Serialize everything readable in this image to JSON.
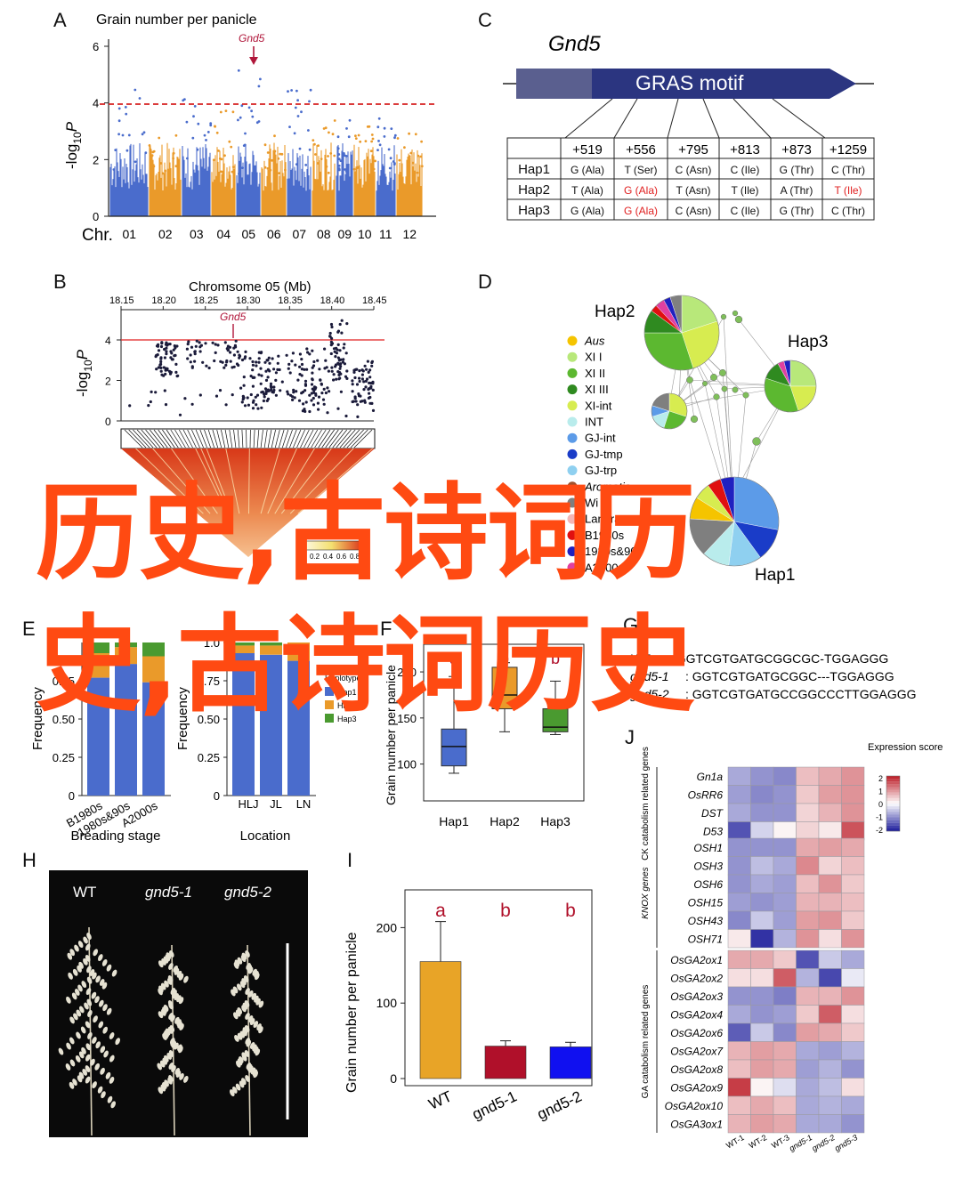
{
  "panel_labels": {
    "A": "A",
    "B": "B",
    "C": "C",
    "D": "D",
    "E": "E",
    "F": "F",
    "G": "G",
    "H": "H",
    "I": "I",
    "J": "J"
  },
  "panel_a": {
    "title": "Grain number per panicle",
    "ylabel_prefix": "-log",
    "ylabel_sub": "10",
    "ylabel_italic": "P",
    "yticks": [
      "0",
      "2",
      "4",
      "6"
    ],
    "xlabel": "Chr.",
    "chromosomes": [
      "01",
      "02",
      "03",
      "04",
      "05",
      "06",
      "07",
      "08",
      "09",
      "10",
      "11",
      "12"
    ],
    "gene": "Gnd5",
    "threshold": 4,
    "colors": {
      "blue": "#4a6ccc",
      "orange": "#ea9a2a",
      "threshold": "#d62020",
      "gene": "#b0163a"
    }
  },
  "panel_b": {
    "title": "Chromsome 05 (Mb)",
    "xticks": [
      "18.15",
      "18.20",
      "18.25",
      "18.30",
      "18.35",
      "18.40",
      "18.45"
    ],
    "gene": "Gnd5",
    "yticks": [
      "0",
      "2",
      "4"
    ],
    "r2_label": "r",
    "r2_sup": "2",
    "r2_ticks": [
      "0",
      "0.2",
      "0.4",
      "0.6",
      "0.8",
      "1"
    ]
  },
  "panel_c": {
    "gene": "Gnd5",
    "motif": "GRAS  motif",
    "header": [
      "",
      "+519",
      "+556",
      "+795",
      "+813",
      "+873",
      "+1259"
    ],
    "rows": [
      [
        "Hap1",
        "G (Ala)",
        "T (Ser)",
        "C (Asn)",
        "C (Ile)",
        "G (Thr)",
        "C (Thr)"
      ],
      [
        "Hap2",
        "T (Ala)",
        "G (Ala)",
        "T (Asn)",
        "T (Ile)",
        "A (Thr)",
        "T (Ile)"
      ],
      [
        "Hap3",
        "G (Ala)",
        "G (Ala)",
        "C (Asn)",
        "C (Ile)",
        "G (Thr)",
        "C (Thr)"
      ]
    ],
    "red_cells": [
      [
        1,
        2
      ],
      [
        1,
        6
      ],
      [
        2,
        2
      ]
    ]
  },
  "panel_d": {
    "hap_labels": [
      "Hap2",
      "Hap3",
      "Hap1"
    ],
    "legend": [
      {
        "label": "Aus",
        "color": "#f5c400",
        "italic": true
      },
      {
        "label": "XI I",
        "color": "#b8e87a",
        "italic": false
      },
      {
        "label": "XI II",
        "color": "#5cb830",
        "italic": false
      },
      {
        "label": "XI III",
        "color": "#2f8a20",
        "italic": false
      },
      {
        "label": "XI-int",
        "color": "#d7ec50",
        "italic": false
      },
      {
        "label": "INT",
        "color": "#b9ecec",
        "italic": false
      },
      {
        "label": "GJ-int",
        "color": "#5c9be8",
        "italic": false
      },
      {
        "label": "GJ-tmp",
        "color": "#1a3cc8",
        "italic": false
      },
      {
        "label": "GJ-trp",
        "color": "#8fd0f0",
        "italic": false
      },
      {
        "label": "Aromatic",
        "color": "#a0522d",
        "italic": true
      },
      {
        "label": "Wi",
        "color": "#7f7f7f",
        "italic": false
      },
      {
        "label": "Landrace",
        "color": "#f4b6b6",
        "italic": false
      },
      {
        "label": "B1980s",
        "color": "#e01010",
        "italic": false
      },
      {
        "label": "1980s&90s",
        "color": "#2020c0",
        "italic": false
      },
      {
        "label": "A2000s",
        "color": "#e040a0",
        "italic": false
      }
    ]
  },
  "panel_e": {
    "ylabel": "Frequency",
    "yticks": [
      "0",
      "0.25",
      "0.50",
      "0.75"
    ],
    "categories": [
      "B1980s",
      "1980s&90s",
      "A2000s"
    ],
    "xlabel": "Breading stage"
  },
  "panel_f1": {
    "ylabel": "Frequency",
    "yticks": [
      "0",
      "0.25",
      "0.50",
      "0.75",
      "1.0"
    ],
    "categories": [
      "HLJ",
      "JL",
      "LN"
    ],
    "xlabel": "Location",
    "legend_title": "Haplotype",
    "legend": [
      "Hap1",
      "Hap2",
      "Hap3"
    ]
  },
  "panel_f2": {
    "ylabel": "Grain number per panicle",
    "yticks": [
      "100",
      "150",
      "200"
    ],
    "categories": [
      "Hap1",
      "Hap2",
      "Hap3"
    ],
    "letters": [
      "a",
      "b",
      "b"
    ]
  },
  "panel_g": {
    "lines": [
      {
        "label": "WT",
        "seq": ": GGTCGTGATGCGGCGC-TGGAGGG"
      },
      {
        "label": "gnd5-1",
        "seq": ": GGTCGTGATGCGGC---TGGAGGG"
      },
      {
        "label": "gnd5-2",
        "seq": ": GGTCGTGATGCCGGCCCTTGGAGGG"
      }
    ]
  },
  "panel_h": {
    "labels": [
      "WT",
      "gnd5-1",
      "gnd5-2"
    ]
  },
  "panel_i": {
    "ylabel": "Grain number per panicle",
    "yticks": [
      "0",
      "100",
      "200"
    ],
    "categories": [
      "WT",
      "gnd5-1",
      "gnd5-2"
    ],
    "letters": [
      "a",
      "b",
      "b"
    ],
    "colors": [
      "#e8a427",
      "#b0102a",
      "#1010f0"
    ]
  },
  "panel_j": {
    "legend_title": "Expression score",
    "legend_ticks": [
      "2",
      "1",
      "0",
      "-1",
      "-2"
    ],
    "columns": [
      "WT-1",
      "WT-2",
      "WT-3",
      "gnd5-1",
      "gnd5-2",
      "gnd5-3"
    ],
    "groups": [
      {
        "label": "CK catabolism related genes",
        "genes": [
          "Gn1a",
          "OsRR6",
          "DST",
          "D53"
        ]
      },
      {
        "label": "KNOX genes",
        "genes": [
          "OSH1",
          "OSH3",
          "OSH6",
          "OSH15",
          "OSH43",
          "OSH71"
        ]
      },
      {
        "label": "GA catabolism related genes",
        "genes": [
          "OsGA2ox1",
          "OsGA2ox2",
          "OsGA2ox3",
          "OsGA2ox4",
          "OsGA2ox6",
          "OsGA2ox7",
          "OsGA2ox8",
          "OsGA2ox9",
          "OsGA2ox10",
          "OsGA3ox1"
        ]
      }
    ]
  },
  "watermark": {
    "line1": "历史,古诗词历",
    "line2": "史,古诗词历史",
    "color": "#ff4a12"
  }
}
